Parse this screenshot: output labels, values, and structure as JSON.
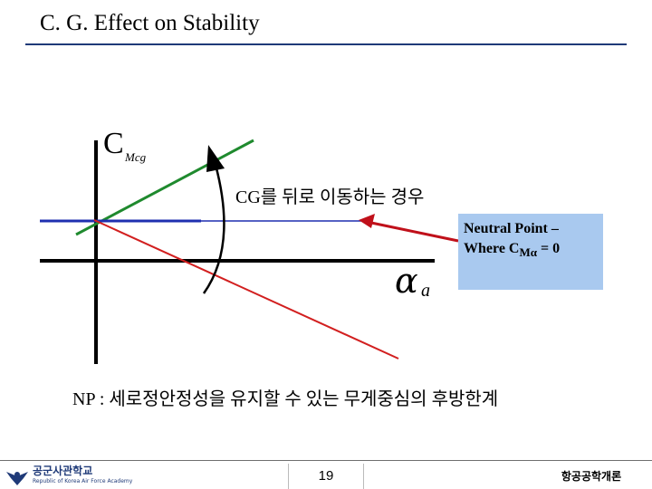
{
  "slide": {
    "title": "C. G. Effect on Stability"
  },
  "diagram": {
    "cm_label": "C",
    "cm_subscript": "Mcg",
    "cg_move_label": "CG를 뒤로 이동하는 경우",
    "alpha_label": "α",
    "alpha_subscript": "a",
    "neutral_point_line1": "Neutral Point –",
    "neutral_point_line2_prefix": "Where C",
    "neutral_point_line2_sub": "Mα",
    "neutral_point_line2_suffix": " = 0",
    "np_bottom_text": "NP : 세로정안정성을 유지할 수 있는 무게중심의 후방한계",
    "colors": {
      "green_line": "#1f8a2e",
      "blue_line": "#1f2fb0",
      "red_line": "#d21f1f",
      "arrow_red": "#c0101a",
      "box_fill": "#a9c9ef"
    }
  },
  "footer": {
    "school_name": "공군사관학교",
    "school_sub": "Republic of Korea Air Force Academy",
    "page_number": "19",
    "course_name": "항공공학개론"
  }
}
